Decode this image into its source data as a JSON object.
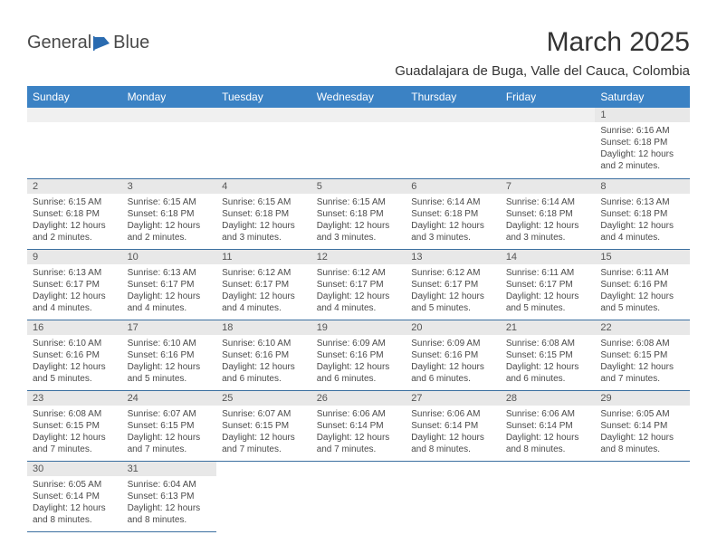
{
  "logo": {
    "text1": "General",
    "text2": "Blue",
    "icon_color": "#2a6bb0"
  },
  "title": "March 2025",
  "location": "Guadalajara de Buga, Valle del Cauca, Colombia",
  "header_bg": "#3b82c4",
  "border_color": "#3b6fa0",
  "daynum_bg": "#e8e8e8",
  "weekdays": [
    "Sunday",
    "Monday",
    "Tuesday",
    "Wednesday",
    "Thursday",
    "Friday",
    "Saturday"
  ],
  "weeks": [
    [
      null,
      null,
      null,
      null,
      null,
      null,
      {
        "n": "1",
        "sr": "6:16 AM",
        "ss": "6:18 PM",
        "dl": "12 hours and 2 minutes."
      }
    ],
    [
      {
        "n": "2",
        "sr": "6:15 AM",
        "ss": "6:18 PM",
        "dl": "12 hours and 2 minutes."
      },
      {
        "n": "3",
        "sr": "6:15 AM",
        "ss": "6:18 PM",
        "dl": "12 hours and 2 minutes."
      },
      {
        "n": "4",
        "sr": "6:15 AM",
        "ss": "6:18 PM",
        "dl": "12 hours and 3 minutes."
      },
      {
        "n": "5",
        "sr": "6:15 AM",
        "ss": "6:18 PM",
        "dl": "12 hours and 3 minutes."
      },
      {
        "n": "6",
        "sr": "6:14 AM",
        "ss": "6:18 PM",
        "dl": "12 hours and 3 minutes."
      },
      {
        "n": "7",
        "sr": "6:14 AM",
        "ss": "6:18 PM",
        "dl": "12 hours and 3 minutes."
      },
      {
        "n": "8",
        "sr": "6:13 AM",
        "ss": "6:18 PM",
        "dl": "12 hours and 4 minutes."
      }
    ],
    [
      {
        "n": "9",
        "sr": "6:13 AM",
        "ss": "6:17 PM",
        "dl": "12 hours and 4 minutes."
      },
      {
        "n": "10",
        "sr": "6:13 AM",
        "ss": "6:17 PM",
        "dl": "12 hours and 4 minutes."
      },
      {
        "n": "11",
        "sr": "6:12 AM",
        "ss": "6:17 PM",
        "dl": "12 hours and 4 minutes."
      },
      {
        "n": "12",
        "sr": "6:12 AM",
        "ss": "6:17 PM",
        "dl": "12 hours and 4 minutes."
      },
      {
        "n": "13",
        "sr": "6:12 AM",
        "ss": "6:17 PM",
        "dl": "12 hours and 5 minutes."
      },
      {
        "n": "14",
        "sr": "6:11 AM",
        "ss": "6:17 PM",
        "dl": "12 hours and 5 minutes."
      },
      {
        "n": "15",
        "sr": "6:11 AM",
        "ss": "6:16 PM",
        "dl": "12 hours and 5 minutes."
      }
    ],
    [
      {
        "n": "16",
        "sr": "6:10 AM",
        "ss": "6:16 PM",
        "dl": "12 hours and 5 minutes."
      },
      {
        "n": "17",
        "sr": "6:10 AM",
        "ss": "6:16 PM",
        "dl": "12 hours and 5 minutes."
      },
      {
        "n": "18",
        "sr": "6:10 AM",
        "ss": "6:16 PM",
        "dl": "12 hours and 6 minutes."
      },
      {
        "n": "19",
        "sr": "6:09 AM",
        "ss": "6:16 PM",
        "dl": "12 hours and 6 minutes."
      },
      {
        "n": "20",
        "sr": "6:09 AM",
        "ss": "6:16 PM",
        "dl": "12 hours and 6 minutes."
      },
      {
        "n": "21",
        "sr": "6:08 AM",
        "ss": "6:15 PM",
        "dl": "12 hours and 6 minutes."
      },
      {
        "n": "22",
        "sr": "6:08 AM",
        "ss": "6:15 PM",
        "dl": "12 hours and 7 minutes."
      }
    ],
    [
      {
        "n": "23",
        "sr": "6:08 AM",
        "ss": "6:15 PM",
        "dl": "12 hours and 7 minutes."
      },
      {
        "n": "24",
        "sr": "6:07 AM",
        "ss": "6:15 PM",
        "dl": "12 hours and 7 minutes."
      },
      {
        "n": "25",
        "sr": "6:07 AM",
        "ss": "6:15 PM",
        "dl": "12 hours and 7 minutes."
      },
      {
        "n": "26",
        "sr": "6:06 AM",
        "ss": "6:14 PM",
        "dl": "12 hours and 7 minutes."
      },
      {
        "n": "27",
        "sr": "6:06 AM",
        "ss": "6:14 PM",
        "dl": "12 hours and 8 minutes."
      },
      {
        "n": "28",
        "sr": "6:06 AM",
        "ss": "6:14 PM",
        "dl": "12 hours and 8 minutes."
      },
      {
        "n": "29",
        "sr": "6:05 AM",
        "ss": "6:14 PM",
        "dl": "12 hours and 8 minutes."
      }
    ],
    [
      {
        "n": "30",
        "sr": "6:05 AM",
        "ss": "6:14 PM",
        "dl": "12 hours and 8 minutes."
      },
      {
        "n": "31",
        "sr": "6:04 AM",
        "ss": "6:13 PM",
        "dl": "12 hours and 8 minutes."
      },
      null,
      null,
      null,
      null,
      null
    ]
  ],
  "labels": {
    "sunrise": "Sunrise:",
    "sunset": "Sunset:",
    "daylight": "Daylight:"
  }
}
